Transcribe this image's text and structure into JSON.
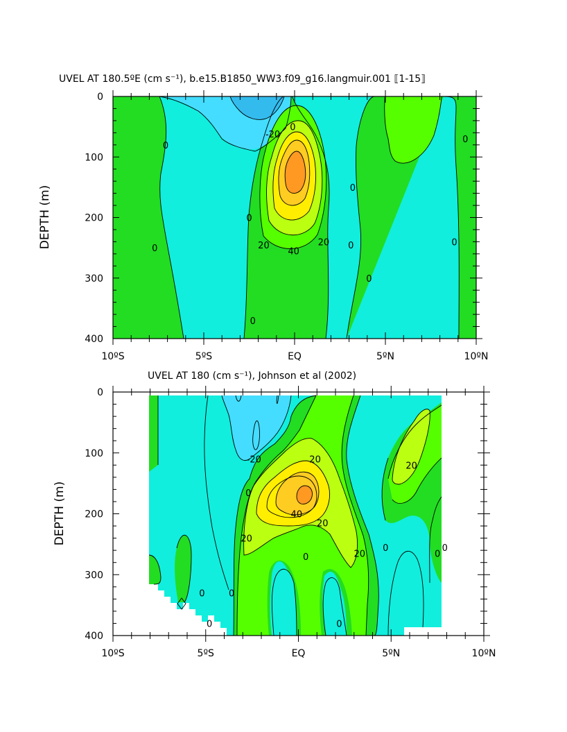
{
  "colors": {
    "c_le_-20": "#33bbee",
    "c_-20_-10": "#44ddff",
    "c_-10_0": "#11eedd",
    "c_0_10": "#22dd22",
    "c_10_20": "#55ff00",
    "c_20_30": "#bbff11",
    "c_30_40": "#ffee00",
    "c_40_50": "#ffcc22",
    "c_ge_50": "#ff9922"
  },
  "chart_data": [
    {
      "type": "contour",
      "title": "UVEL AT 180.5ºE (cm s⁻¹), b.e15.B1850_WW3.f09_g16.langmuir.001 ⟦1-15⟧",
      "xlabel": "",
      "ylabel": "DEPTH (m)",
      "xlim": [
        -10,
        10
      ],
      "ylim": [
        400,
        0
      ],
      "x_ticks": [
        "10ºS",
        "5ºS",
        "EQ",
        "5ºN",
        "10ºN"
      ],
      "y_ticks": [
        "0",
        "100",
        "200",
        "300",
        "400"
      ],
      "contour_interval": 10,
      "contour_labels": [
        {
          "text": "0",
          "x": -7.1,
          "y": 80
        },
        {
          "text": "0",
          "x": -7.7,
          "y": 250
        },
        {
          "text": "-20",
          "x": -1.2,
          "y": 62
        },
        {
          "text": "0",
          "x": -0.1,
          "y": 50
        },
        {
          "text": "0",
          "x": -2.5,
          "y": 200
        },
        {
          "text": "20",
          "x": -1.7,
          "y": 245
        },
        {
          "text": "40",
          "x": -0.05,
          "y": 255
        },
        {
          "text": "20",
          "x": 1.6,
          "y": 240
        },
        {
          "text": "0",
          "x": -2.3,
          "y": 370
        },
        {
          "text": "0",
          "x": 3.2,
          "y": 150
        },
        {
          "text": "0",
          "x": 3.1,
          "y": 245
        },
        {
          "text": "0",
          "x": 4.1,
          "y": 300
        },
        {
          "text": "0",
          "x": 9.4,
          "y": 70
        },
        {
          "text": "0",
          "x": 8.8,
          "y": 240
        }
      ]
    },
    {
      "type": "contour",
      "title": "UVEL AT 180 (cm s⁻¹), Johnson et al (2002)",
      "xlabel": "",
      "ylabel": "DEPTH (m)",
      "xlim": [
        -10,
        10
      ],
      "ylim": [
        400,
        0
      ],
      "x_ticks": [
        "10ºS",
        "5ºS",
        "EQ",
        "5ºN",
        "10ºN"
      ],
      "y_ticks": [
        "0",
        "100",
        "200",
        "300",
        "400"
      ],
      "contour_interval": 10,
      "contour_labels": [
        {
          "text": "-20",
          "x": -2.4,
          "y": 110
        },
        {
          "text": "20",
          "x": 0.9,
          "y": 110
        },
        {
          "text": "0",
          "x": -2.7,
          "y": 165
        },
        {
          "text": "20",
          "x": -2.8,
          "y": 240
        },
        {
          "text": "40",
          "x": -0.1,
          "y": 200
        },
        {
          "text": "20",
          "x": 1.3,
          "y": 215
        },
        {
          "text": "0",
          "x": 0.4,
          "y": 270
        },
        {
          "text": "20",
          "x": 3.3,
          "y": 265
        },
        {
          "text": "20",
          "x": 6.1,
          "y": 120
        },
        {
          "text": "0",
          "x": 4.7,
          "y": 255
        },
        {
          "text": "0",
          "x": 7.5,
          "y": 265
        },
        {
          "text": "0",
          "x": 7.9,
          "y": 255
        },
        {
          "text": "0",
          "x": -3.6,
          "y": 330
        },
        {
          "text": "0",
          "x": -5.2,
          "y": 330
        },
        {
          "text": "0",
          "x": 2.2,
          "y": 380
        },
        {
          "text": "0",
          "x": -4.8,
          "y": 380
        }
      ]
    }
  ]
}
